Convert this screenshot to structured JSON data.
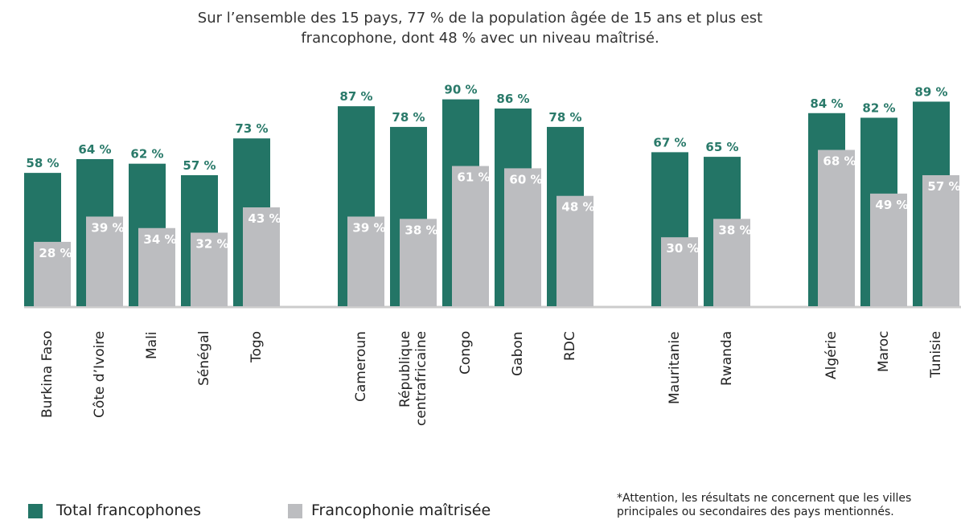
{
  "chart_data": {
    "type": "bar",
    "title": "Sur l’ensemble des 15 pays, 77 % de la population âgée de 15 ans et plus est francophone, dont 48 % avec un niveau maîtrisé.",
    "categories": [
      "Burkina Faso",
      "Côte d’Ivoire",
      "Mali",
      "Sénégal",
      "Togo",
      "Cameroun",
      "République centrafricaine",
      "Congo",
      "Gabon",
      "RDC",
      "Mauritanie",
      "Rwanda",
      "Algérie",
      "Maroc",
      "Tunisie"
    ],
    "series": [
      {
        "name": "Total francophones",
        "color": "#237566",
        "values": [
          58,
          64,
          62,
          57,
          73,
          87,
          78,
          90,
          86,
          78,
          67,
          65,
          84,
          82,
          89
        ],
        "value_labels": [
          "58 %",
          "64 %",
          "62 %",
          "57 %",
          "73 %",
          "87 %",
          "78 %",
          "90 %",
          "86 %",
          "78 %",
          "67 %",
          "65 %",
          "84 %",
          "82 %",
          "89 %"
        ]
      },
      {
        "name": "Francophonie maîtrisée",
        "color": "#bcbdc0",
        "values": [
          28,
          39,
          34,
          32,
          43,
          39,
          38,
          61,
          60,
          48,
          30,
          38,
          68,
          49,
          57
        ],
        "value_labels": [
          "28 %",
          "39 %",
          "34 %",
          "32 %",
          "43 %",
          "39 %",
          "38 %",
          "61 %",
          "60 %",
          "48 %",
          "30 %",
          "38 %",
          "68 %",
          "49 %",
          "57 %"
        ]
      }
    ],
    "note": "*Attention, les résultats ne concernent que les villes principales ou secondaires des pays mentionnés."
  }
}
